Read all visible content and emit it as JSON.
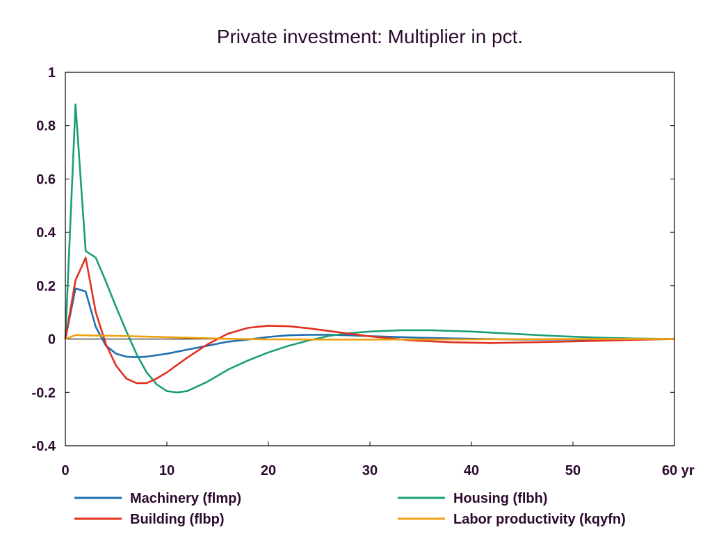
{
  "chart_data": {
    "type": "line",
    "title": "Private investment: Multiplier in pct.",
    "xlabel": "",
    "ylabel": "",
    "x_unit": "yr",
    "xlim": [
      0,
      60
    ],
    "ylim": [
      -0.4,
      1
    ],
    "x_ticks": [
      0,
      10,
      20,
      30,
      40,
      50,
      60
    ],
    "x_tick_labels": [
      "0",
      "10",
      "20",
      "30",
      "40",
      "50",
      "60 yr"
    ],
    "y_ticks": [
      -0.4,
      -0.2,
      0,
      0.2,
      0.4,
      0.6,
      0.8,
      1
    ],
    "y_tick_labels": [
      "-0.4",
      "-0.2",
      "0",
      "0.2",
      "0.4",
      "0.6",
      "0.8",
      "1"
    ],
    "grid": false,
    "zero_line": true,
    "legend_position": "bottom",
    "series": [
      {
        "name": "Machinery (flmp)",
        "color": "#1f6fb0",
        "x": [
          0,
          1,
          2,
          3,
          4,
          5,
          6,
          7,
          8,
          10,
          12,
          14,
          16,
          18,
          20,
          22,
          24,
          26,
          28,
          30,
          35,
          40,
          45,
          50,
          55,
          60
        ],
        "y": [
          0,
          0.19,
          0.178,
          0.045,
          -0.025,
          -0.055,
          -0.066,
          -0.068,
          -0.066,
          -0.055,
          -0.04,
          -0.025,
          -0.01,
          -0.002,
          0.008,
          0.014,
          0.016,
          0.016,
          0.014,
          0.011,
          0.005,
          0.001,
          -0.002,
          -0.002,
          -0.001,
          0.0
        ]
      },
      {
        "name": "Building (flbp)",
        "color": "#e03020",
        "x": [
          0,
          1,
          2,
          3,
          4,
          5,
          6,
          7,
          8,
          9,
          10,
          12,
          14,
          16,
          18,
          20,
          22,
          24,
          26,
          28,
          30,
          34,
          38,
          42,
          46,
          50,
          55,
          60
        ],
        "y": [
          0,
          0.22,
          0.305,
          0.1,
          -0.02,
          -0.1,
          -0.148,
          -0.165,
          -0.165,
          -0.148,
          -0.125,
          -0.07,
          -0.02,
          0.02,
          0.042,
          0.05,
          0.048,
          0.04,
          0.03,
          0.02,
          0.01,
          -0.005,
          -0.012,
          -0.015,
          -0.012,
          -0.009,
          -0.004,
          0.0
        ]
      },
      {
        "name": "Housing (flbh)",
        "color": "#1a9e78",
        "x": [
          0,
          1,
          2,
          3,
          4,
          5,
          6,
          7,
          8,
          9,
          10,
          11,
          12,
          14,
          16,
          18,
          20,
          22,
          24,
          26,
          28,
          30,
          33,
          36,
          40,
          44,
          48,
          52,
          56,
          60
        ],
        "y": [
          0,
          0.88,
          0.33,
          0.305,
          0.215,
          0.12,
          0.03,
          -0.055,
          -0.125,
          -0.17,
          -0.195,
          -0.2,
          -0.195,
          -0.16,
          -0.115,
          -0.08,
          -0.05,
          -0.025,
          -0.005,
          0.012,
          0.022,
          0.028,
          0.033,
          0.033,
          0.028,
          0.02,
          0.012,
          0.006,
          0.002,
          0.0
        ]
      },
      {
        "name": "Labor productivity (kqyfn)",
        "color": "#f0a010",
        "x": [
          0,
          1,
          2,
          3,
          5,
          8,
          12,
          16,
          20,
          25,
          30,
          40,
          50,
          60
        ],
        "y": [
          0,
          0.015,
          0.014,
          0.013,
          0.012,
          0.009,
          0.005,
          0.001,
          -0.001,
          -0.002,
          -0.002,
          -0.001,
          0.0,
          0.0
        ]
      }
    ]
  }
}
